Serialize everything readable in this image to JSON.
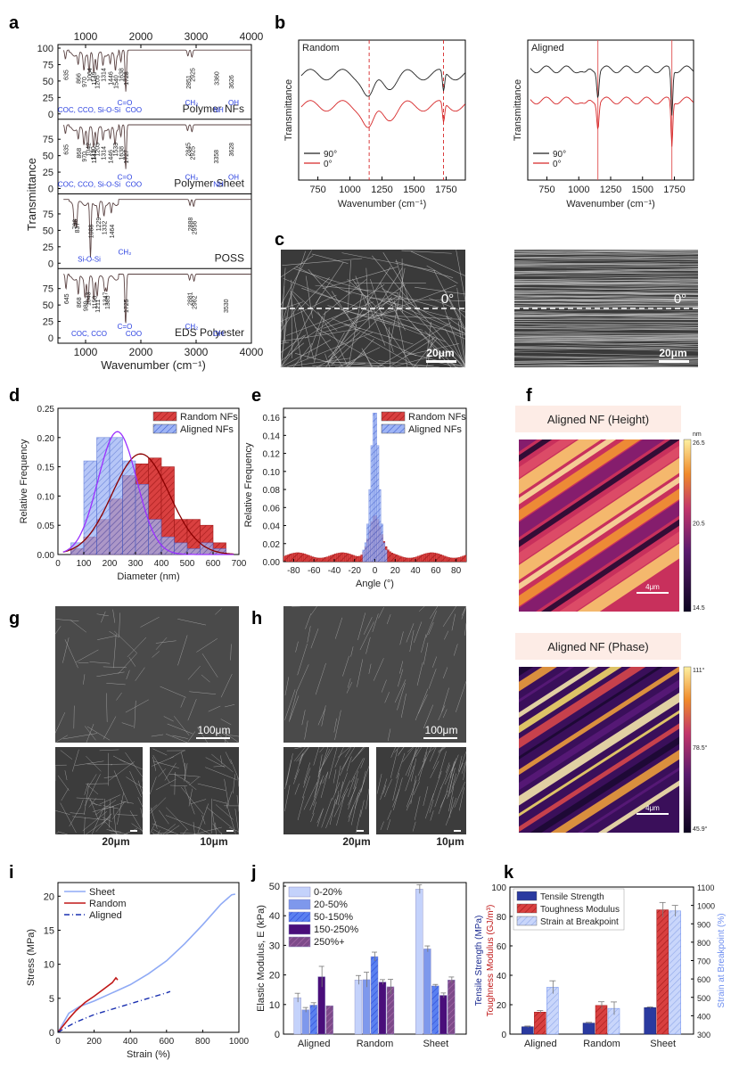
{
  "panel_letters": [
    "a",
    "b",
    "c",
    "d",
    "e",
    "f",
    "g",
    "h",
    "i",
    "j",
    "k"
  ],
  "colors": {
    "random_red": "#d62728",
    "aligned_blue": "#6f8ff0",
    "purple": "#7a3ea0",
    "dark": "#222222",
    "annot_blue": "#2a40e0"
  },
  "chart_data": [
    {
      "panel": "a",
      "type": "line",
      "xlabel": "Wavenumber (cm⁻¹)",
      "ylabel": "Transmittance",
      "xlim": [
        500,
        4000
      ],
      "x_ticks": [
        1000,
        2000,
        3000,
        4000
      ],
      "y_ticks": [
        0,
        25,
        50,
        75,
        100
      ],
      "subplots": [
        {
          "label": "Polymer NFs",
          "peaks": [
            "635",
            "866",
            "970",
            "1064",
            "1149",
            "1205",
            "1314",
            "1446",
            "1540",
            "1638",
            "1728",
            "2851",
            "2925",
            "3360",
            "3626"
          ],
          "groups": [
            "COC, CCO, Si-O-Si",
            "C=O",
            "COO",
            "CH₂",
            "NH",
            "OH"
          ]
        },
        {
          "label": "Polymer Sheet",
          "peaks": [
            "635",
            "868",
            "970",
            "1042",
            "1130",
            "1142",
            "1205",
            "1314",
            "1446",
            "1533",
            "1638",
            "1727",
            "2845",
            "2925",
            "3358",
            "3628"
          ],
          "groups": [
            "COC, CCO, Si-O-Si",
            "C=O",
            "COO",
            "CH₂",
            "NH",
            "OH"
          ]
        },
        {
          "label": "POSS",
          "peaks": [
            "798",
            "837",
            "1088",
            "1229",
            "1332",
            "1464",
            "2888",
            "2956"
          ],
          "groups": [
            "Si-O-Si",
            "CH₂"
          ]
        },
        {
          "label": "EDS Polyester",
          "peaks": [
            "645",
            "868",
            "989",
            "1043",
            "1150",
            "1211",
            "1347",
            "1385",
            "1725",
            "2881",
            "2962",
            "3530"
          ],
          "groups": [
            "COC, CCO",
            "C=O",
            "COO",
            "CH₂",
            "OH"
          ]
        }
      ]
    },
    {
      "panel": "b",
      "type": "line",
      "xlabel": "Wavenumber (cm⁻¹)",
      "ylabel": "Transmittance",
      "xlim": [
        600,
        1900
      ],
      "x_ticks": [
        750,
        1000,
        1250,
        1500,
        1750
      ],
      "reference_lines": [
        1150,
        1730
      ],
      "subplots": [
        {
          "title": "Random"
        },
        {
          "title": "Aligned"
        }
      ],
      "series": [
        {
          "name": "90°",
          "color": "#222222"
        },
        {
          "name": "0°",
          "color": "#d62728"
        }
      ]
    },
    {
      "panel": "c",
      "type": "other",
      "images": [
        {
          "label": "0°",
          "scale": "20μm"
        },
        {
          "label": "0°",
          "scale": "20μm"
        }
      ]
    },
    {
      "panel": "d",
      "type": "bar",
      "xlabel": "Diameter (nm)",
      "ylabel": "Relative Frequency",
      "xlim": [
        0,
        700
      ],
      "ylim": [
        0,
        0.25
      ],
      "x_ticks": [
        0,
        100,
        200,
        300,
        400,
        500,
        600,
        700
      ],
      "y_ticks": [
        0.0,
        0.05,
        0.1,
        0.15,
        0.2,
        0.25
      ],
      "bin_edges": [
        50,
        100,
        150,
        200,
        250,
        300,
        350,
        400,
        450,
        500,
        550,
        600,
        650
      ],
      "legend_position": "top-right",
      "series": [
        {
          "name": "Random NFs",
          "values": [
            0.01,
            0.03,
            0.06,
            0.095,
            0.135,
            0.155,
            0.165,
            0.15,
            0.06,
            0.06,
            0.05,
            0.02
          ]
        },
        {
          "name": "Aligned NFs",
          "values": [
            0.02,
            0.16,
            0.2,
            0.2,
            0.16,
            0.12,
            0.06,
            0.03,
            0.02,
            0.01,
            0.02,
            0.01
          ]
        }
      ],
      "fits": [
        {
          "series": "Random NFs",
          "mean": 320,
          "peak": 0.172
        },
        {
          "series": "Aligned NFs",
          "mean": 230,
          "peak": 0.21
        }
      ]
    },
    {
      "panel": "e",
      "type": "bar",
      "xlabel": "Angle (°)",
      "ylabel": "Relative Frequency",
      "xlim": [
        -90,
        90
      ],
      "ylim": [
        0,
        0.17
      ],
      "x_ticks": [
        -80,
        -60,
        -40,
        -20,
        0,
        20,
        40,
        60,
        80
      ],
      "y_ticks": [
        0.0,
        0.02,
        0.04,
        0.06,
        0.08,
        0.1,
        0.12,
        0.14,
        0.16
      ],
      "legend_position": "top-right",
      "series": [
        {
          "name": "Random NFs"
        },
        {
          "name": "Aligned NFs"
        }
      ],
      "aligned_peak": 0.16,
      "random_baseline": 0.007
    },
    {
      "panel": "f",
      "type": "heatmap",
      "maps": [
        {
          "title": "Aligned NF (Height)",
          "scale_bar": "4μm",
          "colorbar": [
            "26.5",
            "20.5",
            "14.5"
          ],
          "unit": "nm"
        },
        {
          "title": "Aligned NF (Phase)",
          "scale_bar": "4μm",
          "colorbar": [
            "111°",
            "78.5°",
            "45.9°"
          ]
        }
      ]
    },
    {
      "panel": "g",
      "type": "other",
      "scale_bars": [
        "100μm",
        "20μm",
        "10μm"
      ]
    },
    {
      "panel": "h",
      "type": "other",
      "scale_bars": [
        "100μm",
        "20μm",
        "10μm"
      ]
    },
    {
      "panel": "i",
      "type": "line",
      "xlabel": "Strain (%)",
      "ylabel": "Stress (MPa)",
      "xlim": [
        0,
        1000
      ],
      "ylim": [
        0,
        22
      ],
      "x_ticks": [
        0,
        200,
        400,
        600,
        800,
        1000
      ],
      "y_ticks": [
        0,
        5,
        10,
        15,
        20
      ],
      "legend_position": "top-left",
      "series": [
        {
          "name": "Sheet",
          "x": [
            0,
            60,
            120,
            200,
            300,
            400,
            500,
            600,
            700,
            800,
            900,
            960,
            980
          ],
          "y": [
            0,
            2.8,
            3.8,
            4.6,
            5.8,
            7.0,
            8.6,
            10.5,
            13.0,
            15.8,
            18.8,
            20.2,
            20.3
          ]
        },
        {
          "name": "Random",
          "x": [
            0,
            30,
            60,
            100,
            150,
            200,
            250,
            300,
            320,
            330
          ],
          "y": [
            0,
            1.0,
            2.0,
            3.2,
            4.4,
            5.3,
            6.3,
            7.3,
            8.0,
            7.7
          ]
        },
        {
          "name": "Aligned",
          "x": [
            0,
            50,
            100,
            200,
            300,
            400,
            500,
            600,
            620
          ],
          "y": [
            0,
            0.8,
            1.5,
            2.6,
            3.4,
            4.2,
            5.0,
            5.8,
            6.0
          ]
        }
      ]
    },
    {
      "panel": "j",
      "type": "bar",
      "ylabel": "Elastic Modulus, E (kPa)",
      "ylim": [
        0,
        50
      ],
      "y_ticks": [
        0,
        10,
        20,
        30,
        40,
        50
      ],
      "categories": [
        "Aligned",
        "Random",
        "Sheet"
      ],
      "legend_position": "top-left",
      "series": [
        {
          "name": "0-20%",
          "values": [
            12.3,
            18.3,
            49.0
          ],
          "errors": [
            1.5,
            1.5,
            1.5
          ]
        },
        {
          "name": "20-50%",
          "values": [
            8.2,
            18.4,
            28.8
          ],
          "errors": [
            0.8,
            2.5,
            1.0
          ]
        },
        {
          "name": "50-150%",
          "values": [
            9.8,
            26.2,
            16.3
          ],
          "errors": [
            0.8,
            1.5,
            0.5
          ]
        },
        {
          "name": "150-250%",
          "values": [
            19.4,
            17.6,
            13.1
          ],
          "errors": [
            3.5,
            0.8,
            0.8
          ]
        },
        {
          "name": "250%+",
          "values": [
            9.6,
            16.0,
            18.3
          ],
          "errors": [
            0,
            2.5,
            1.0
          ]
        }
      ]
    },
    {
      "panel": "k",
      "type": "bar",
      "ylabel_left": [
        "Tensile Strength (MPa)",
        "Toughness Modulus (GJ/m³)"
      ],
      "ylabel_right": "Strain at Breakpoint (%)",
      "ylim_left": [
        0,
        100
      ],
      "ylim_right": [
        300,
        1100
      ],
      "y_ticks_left": [
        0,
        20,
        40,
        60,
        80,
        100
      ],
      "y_ticks_right": [
        300,
        400,
        500,
        600,
        700,
        800,
        900,
        1000,
        1100
      ],
      "categories": [
        "Aligned",
        "Random",
        "Sheet"
      ],
      "legend_position": "top-left",
      "series": [
        {
          "name": "Tensile Strength",
          "axis": "left",
          "values": [
            5,
            7.5,
            18
          ],
          "errors": [
            0.5,
            0.5,
            0.5
          ]
        },
        {
          "name": "Toughness Modulus",
          "axis": "left",
          "values": [
            15,
            19.5,
            84.5
          ],
          "errors": [
            1,
            2.5,
            5
          ]
        },
        {
          "name": "Strain at Breakpoint",
          "axis": "right",
          "values": [
            555,
            440,
            970
          ],
          "errors": [
            35,
            35,
            30
          ]
        }
      ]
    }
  ]
}
